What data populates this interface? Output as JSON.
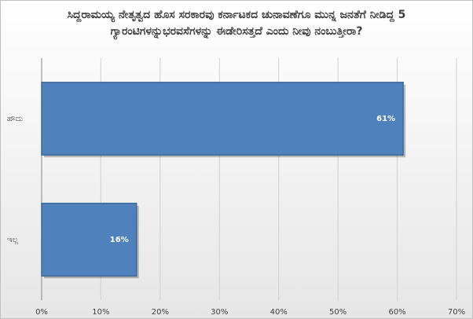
{
  "chart_data": {
    "type": "hbar",
    "title": "ಸಿದ್ದರಾಮಯ್ಯ ನೇತೃತ್ವದ ಹೊಸ ಸರಕಾರವು ಕರ್ನಾಟಕದ ಚುನಾವಣೆಗೂ ಮುನ್ನ ಜನತೆಗೆ ನೀಡಿದ್ದ 5 ಗ್ಯಾರಂಟಿಗಳನ್ನುಭರವಸೆಗಳನ್ನು ಈಡೇರಿಸತ್ತದೆ ಎಂದು ನೀವು ನಂಬುತ್ತೀರಾ?",
    "categories": [
      "ಹೌದು",
      "ಇಲ್ಲ"
    ],
    "values": [
      61,
      16
    ],
    "value_labels": [
      "61%",
      "16%"
    ],
    "color": "#4f81bd",
    "xlim": [
      0,
      70
    ],
    "xticks": [
      {
        "value": 0,
        "label": "0%"
      },
      {
        "value": 10,
        "label": "10%"
      },
      {
        "value": 20,
        "label": "20%"
      },
      {
        "value": 30,
        "label": "30%"
      },
      {
        "value": 40,
        "label": "40%"
      },
      {
        "value": 50,
        "label": "50%"
      },
      {
        "value": 60,
        "label": "60%"
      },
      {
        "value": 70,
        "label": "70%"
      }
    ],
    "grid": true
  }
}
